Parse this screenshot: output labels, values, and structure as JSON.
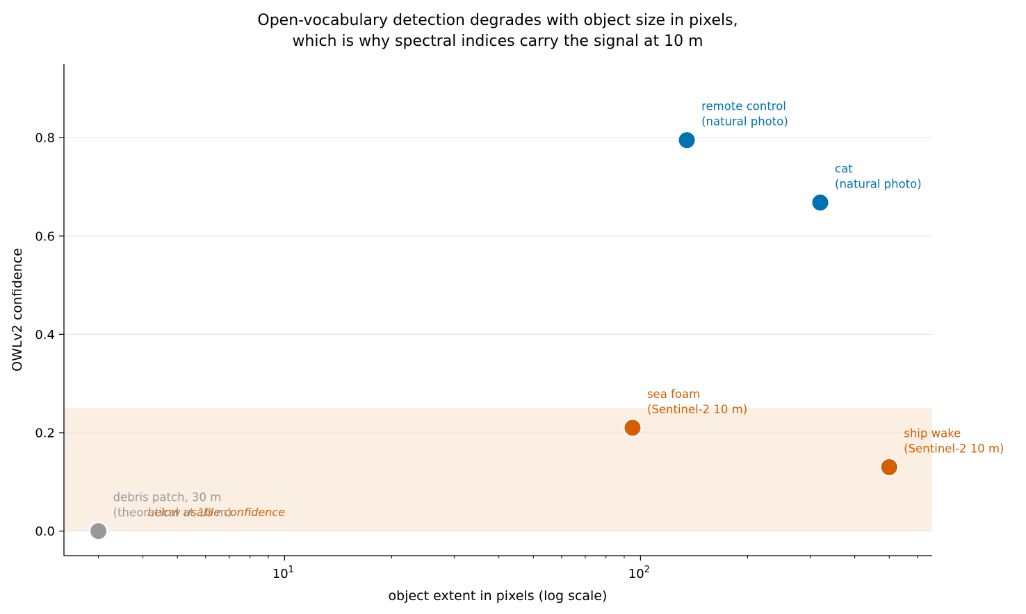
{
  "chart_data": {
    "type": "scatter",
    "title_lines": [
      "Open-vocabulary detection degrades with object size in pixels,",
      "which is why spectral indices carry the signal at 10 m"
    ],
    "xlabel": "object extent in pixels (log scale)",
    "ylabel": "OWLv2 confidence",
    "x_scale": "log",
    "xlim": [
      2.4,
      660
    ],
    "ylim": [
      -0.05,
      0.95
    ],
    "x_ticks": [
      {
        "value": 10,
        "base": "10",
        "exp": "1"
      },
      {
        "value": 100,
        "base": "10",
        "exp": "2"
      }
    ],
    "y_ticks": [
      {
        "value": 0.0,
        "label": "0.0"
      },
      {
        "value": 0.2,
        "label": "0.2"
      },
      {
        "value": 0.4,
        "label": "0.4"
      },
      {
        "value": 0.6,
        "label": "0.6"
      },
      {
        "value": 0.8,
        "label": "0.8"
      }
    ],
    "grid": "y",
    "band": {
      "y0": 0.0,
      "y1": 0.25,
      "label": "below usable confidence",
      "color": "#fbefe3"
    },
    "points": [
      {
        "name": "remote control",
        "sub": "(natural photo)",
        "x": 135,
        "y": 0.795,
        "color": "#0072b2"
      },
      {
        "name": "cat",
        "sub": "(natural photo)",
        "x": 320,
        "y": 0.668,
        "color": "#0072b2"
      },
      {
        "name": "sea foam",
        "sub": "(Sentinel-2 10 m)",
        "x": 95,
        "y": 0.21,
        "color": "#d55e00"
      },
      {
        "name": "ship wake",
        "sub": "(Sentinel-2 10 m)",
        "x": 500,
        "y": 0.13,
        "color": "#d55e00"
      },
      {
        "name": "debris patch, 30 m",
        "sub": "(theoretical at 10 m)",
        "x": 3,
        "y": 0.0,
        "color": "#999999"
      }
    ]
  }
}
